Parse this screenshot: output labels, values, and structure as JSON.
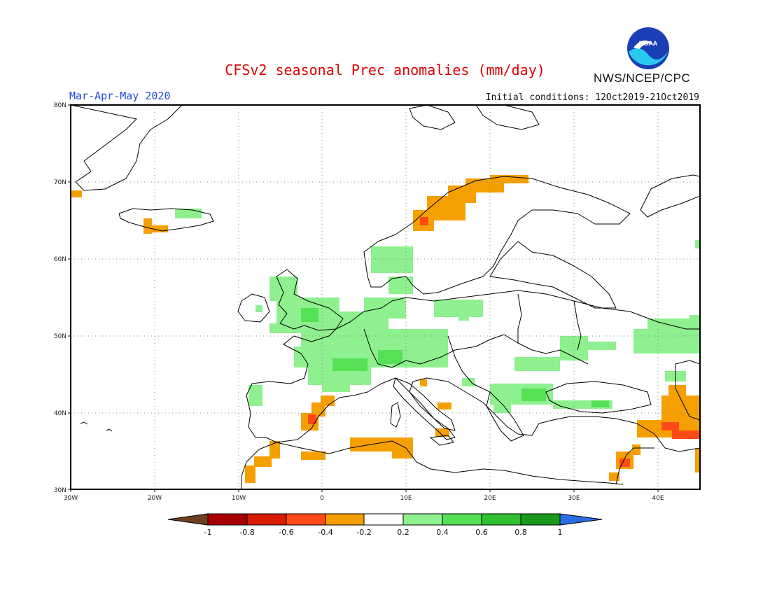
{
  "header": {
    "title": "CFSv2 seasonal Prec anomalies (mm/day)",
    "period": "Mar-Apr-May 2020",
    "initial_conditions": "Initial conditions: 12Oct2019-21Oct2019",
    "agency": "NWS/NCEP/CPC",
    "logo_text": "NOAA"
  },
  "map": {
    "region": "Europe",
    "lon_range": [
      -30,
      45
    ],
    "lat_range": [
      30,
      80
    ],
    "lat_labels": [
      "30N",
      "40N",
      "50N",
      "60N",
      "70N",
      "80N"
    ],
    "lon_labels": [
      "30W",
      "20W",
      "10W",
      "0",
      "10E",
      "20E",
      "30E",
      "40E"
    ],
    "grid": "dotted",
    "colors": {
      "light_green": "#8ef08e",
      "mid_green": "#55e055",
      "orange": "#f5a000",
      "red_orange": "#ff4a18",
      "land_outline": "#000000"
    }
  },
  "colorbar": {
    "labels": [
      "-1",
      "-0.8",
      "-0.6",
      "-0.4",
      "-0.2",
      "0.2",
      "0.4",
      "0.6",
      "0.8",
      "1"
    ],
    "colors": [
      "#6e4020",
      "#a80000",
      "#d81c00",
      "#ff4a18",
      "#f5a000",
      "#ffffff",
      "#8ef08e",
      "#55e055",
      "#30c030",
      "#1a9a1a",
      "#2b6de6"
    ]
  }
}
